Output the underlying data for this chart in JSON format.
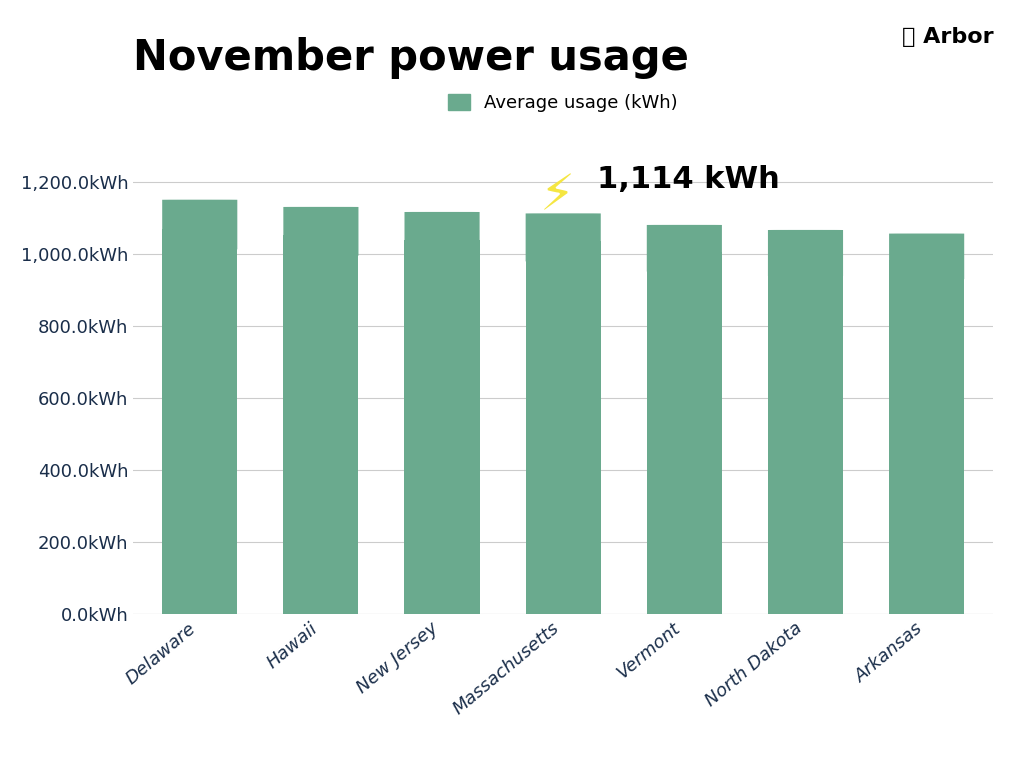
{
  "title": "November power usage",
  "categories": [
    "Delaware",
    "Hawaii",
    "New Jersey",
    "Massachusetts",
    "Vermont",
    "North Dakota",
    "Arkansas"
  ],
  "values": [
    1152,
    1132,
    1118,
    1114,
    1082,
    1068,
    1058
  ],
  "bar_color": "#6aaa8e",
  "highlight_index": 3,
  "highlight_label": "1,114 kWh",
  "legend_label": "Average usage (kWh)",
  "yticks": [
    0,
    200,
    400,
    600,
    800,
    1000,
    1200
  ],
  "ytick_labels": [
    "0.0kWh",
    "200.0kWh",
    "400.0kWh",
    "600.0kWh",
    "800.0kWh",
    "1,000.0kWh",
    "1,200.0kWh"
  ],
  "ylim": [
    0,
    1280
  ],
  "background_color": "#ffffff",
  "bar_width": 0.62,
  "title_fontsize": 30,
  "tick_label_color": "#1a2e4a",
  "grid_color": "#cccccc",
  "logo_text": "Arbor",
  "rounding_size": 30
}
